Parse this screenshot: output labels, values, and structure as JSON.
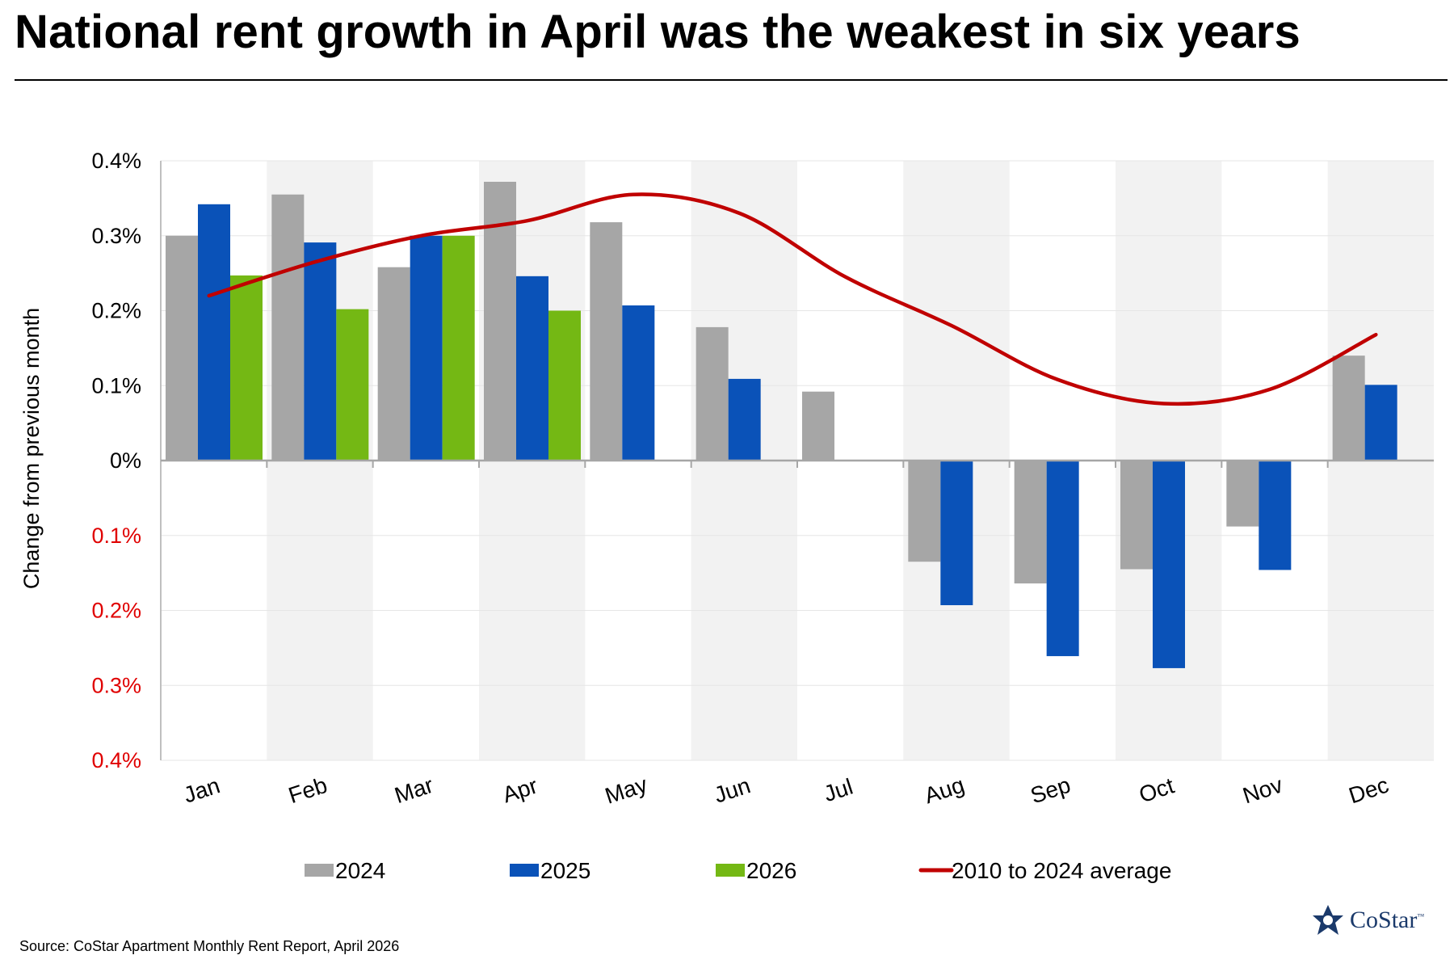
{
  "title": "National rent growth in April was the weakest in six years",
  "source": "Source: CoStar Apartment Monthly Rent Report, April 2026",
  "logo": {
    "text": "CoStar",
    "tm": "™",
    "icon": "costar-star-icon"
  },
  "colors": {
    "s2024": "#a6a6a6",
    "s2025": "#0a52b8",
    "s2026": "#74b814",
    "avg": "#c00000",
    "negative_tick": "#e00000",
    "band": "#f2f2f2"
  },
  "chart_data": {
    "type": "bar",
    "title": "National rent growth in April was the weakest in six years",
    "ylabel": "Change from previous month",
    "xlabel": "",
    "ylim": [
      -0.4,
      0.4
    ],
    "yticks": [
      {
        "value": 0.4,
        "label": "0.4%"
      },
      {
        "value": 0.3,
        "label": "0.3%"
      },
      {
        "value": 0.2,
        "label": "0.2%"
      },
      {
        "value": 0.1,
        "label": "0.1%"
      },
      {
        "value": 0.0,
        "label": "0%"
      },
      {
        "value": -0.1,
        "label": "0.1%"
      },
      {
        "value": -0.2,
        "label": "0.2%"
      },
      {
        "value": -0.3,
        "label": "0.3%"
      },
      {
        "value": -0.4,
        "label": "0.4%"
      }
    ],
    "categories": [
      "Jan",
      "Feb",
      "Mar",
      "Apr",
      "May",
      "Jun",
      "Jul",
      "Aug",
      "Sep",
      "Oct",
      "Nov",
      "Dec"
    ],
    "series": [
      {
        "name": "2024",
        "type": "bar",
        "color_key": "s2024",
        "values": [
          0.3,
          0.355,
          0.258,
          0.372,
          0.318,
          0.178,
          0.092,
          -0.135,
          -0.164,
          -0.145,
          -0.088,
          0.14
        ]
      },
      {
        "name": "2025",
        "type": "bar",
        "color_key": "s2025",
        "values": [
          0.342,
          0.291,
          0.3,
          0.246,
          0.207,
          0.109,
          null,
          -0.193,
          -0.261,
          -0.277,
          -0.146,
          0.101
        ]
      },
      {
        "name": "2026",
        "type": "bar",
        "color_key": "s2026",
        "values": [
          0.247,
          0.202,
          0.3,
          0.2,
          null,
          null,
          null,
          null,
          null,
          null,
          null,
          null
        ]
      },
      {
        "name": "2010 to 2024 average",
        "type": "line",
        "color_key": "avg",
        "values": [
          0.22,
          0.265,
          0.3,
          0.32,
          0.355,
          0.33,
          0.245,
          0.18,
          0.108,
          0.076,
          0.095,
          0.168
        ]
      }
    ],
    "grid": true,
    "alternating_bands": true,
    "legend_position": "bottom"
  }
}
